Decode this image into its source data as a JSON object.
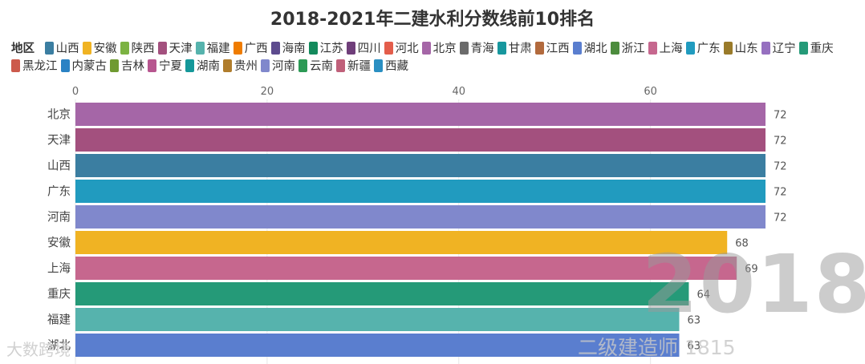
{
  "chart_data": {
    "type": "bar",
    "orientation": "horizontal",
    "title": "2018-2021年二建水利分数线前10排名",
    "legend_title": "地区",
    "legend_placement": "top",
    "legend": [
      {
        "name": "山西",
        "color": "#3b7ea1"
      },
      {
        "name": "安徽",
        "color": "#f0b323"
      },
      {
        "name": "陕西",
        "color": "#7cb342"
      },
      {
        "name": "天津",
        "color": "#a3507e"
      },
      {
        "name": "福建",
        "color": "#56b3ad"
      },
      {
        "name": "广西",
        "color": "#ef7c00"
      },
      {
        "name": "海南",
        "color": "#5d4b8e"
      },
      {
        "name": "江苏",
        "color": "#138a5c"
      },
      {
        "name": "四川",
        "color": "#6f3e7a"
      },
      {
        "name": "河北",
        "color": "#e35d4b"
      },
      {
        "name": "北京",
        "color": "#a566a7"
      },
      {
        "name": "青海",
        "color": "#6b6b6b"
      },
      {
        "name": "甘肃",
        "color": "#17979e"
      },
      {
        "name": "江西",
        "color": "#b26a3d"
      },
      {
        "name": "湖北",
        "color": "#5a7ecf"
      },
      {
        "name": "浙江",
        "color": "#4c8c3d"
      },
      {
        "name": "上海",
        "color": "#c6678e"
      },
      {
        "name": "广东",
        "color": "#219bbf"
      },
      {
        "name": "山东",
        "color": "#9a7b2a"
      },
      {
        "name": "辽宁",
        "color": "#9670c0"
      },
      {
        "name": "重庆",
        "color": "#259a78"
      },
      {
        "name": "黑龙江",
        "color": "#cc5a4c"
      },
      {
        "name": "内蒙古",
        "color": "#2a82c4"
      },
      {
        "name": "吉林",
        "color": "#6f9a31"
      },
      {
        "name": "宁夏",
        "color": "#b7568f"
      },
      {
        "name": "湖南",
        "color": "#15989a"
      },
      {
        "name": "贵州",
        "color": "#b07d2c"
      },
      {
        "name": "河南",
        "color": "#8088cc"
      },
      {
        "name": "云南",
        "color": "#2c9a55"
      },
      {
        "name": "新疆",
        "color": "#c0607a"
      },
      {
        "name": "西藏",
        "color": "#2a8fc2"
      }
    ],
    "categories": [
      "北京",
      "天津",
      "山西",
      "广东",
      "河南",
      "安徽",
      "上海",
      "重庆",
      "福建",
      "湖北"
    ],
    "values": [
      72,
      72,
      72,
      72,
      72,
      68,
      69,
      64,
      63,
      63
    ],
    "value_labels": [
      "72",
      "72",
      "72",
      "72",
      "72",
      "68",
      "69",
      "64",
      "63",
      "63"
    ],
    "bar_colors": [
      "#a566a7",
      "#a3507e",
      "#3b7ea1",
      "#219bbf",
      "#8088cc",
      "#f0b323",
      "#c6678e",
      "#259a78",
      "#56b3ad",
      "#5a7ecf"
    ],
    "xlim": [
      0,
      72
    ],
    "xticks": [
      0,
      20,
      40,
      60
    ],
    "x_axis_position": "top",
    "grid": true
  },
  "watermarks": {
    "year": "2018",
    "source": "大数跨境",
    "account": "二级建造师 1815"
  }
}
